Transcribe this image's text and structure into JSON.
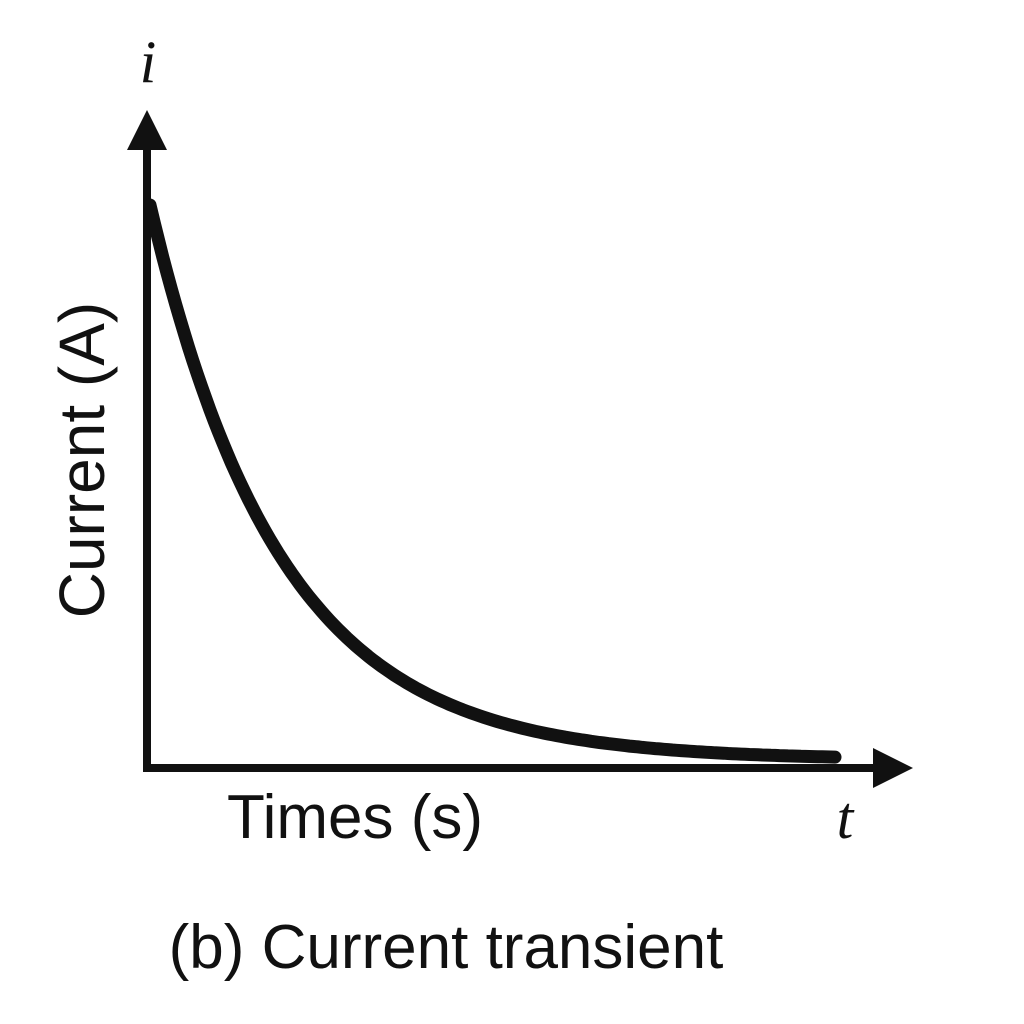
{
  "chart_data": {
    "type": "line",
    "title": "",
    "caption": "(b) Current transient",
    "xlabel": "Times (s)",
    "ylabel": "Current (A)",
    "x_axis_symbol": "t",
    "y_axis_symbol": "i",
    "grid": false,
    "ticks": false,
    "series": [
      {
        "shape": "exponential-decay",
        "peak_current": 1.0,
        "time_constant": 0.19,
        "x_range": [
          0,
          1
        ],
        "color": "#111111"
      }
    ]
  },
  "colors": {
    "background": "#ffffff",
    "ink": "#111111"
  }
}
